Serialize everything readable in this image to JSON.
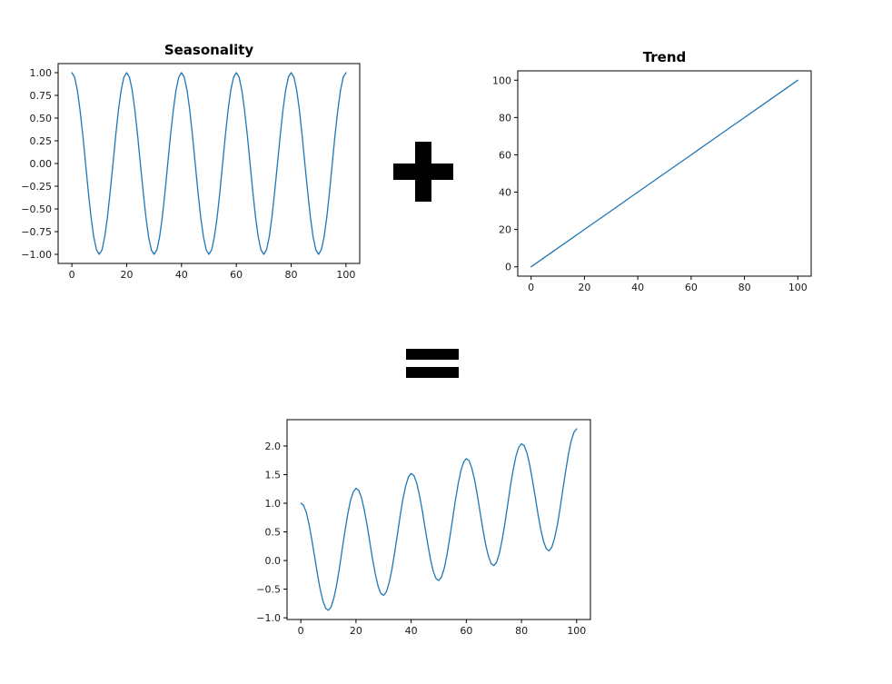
{
  "page": {
    "background": "#ffffff",
    "frame_color": "#000000",
    "tick_text_color": "#1a1a1a"
  },
  "operators": {
    "plus_label": "+",
    "equals_label": "="
  },
  "chart_data": [
    {
      "type": "line",
      "title": "Seasonality",
      "line_color": "#1f77b4",
      "xlim": [
        -5,
        105
      ],
      "ylim": [
        -1.1,
        1.1
      ],
      "xtick_values": [
        0,
        20,
        40,
        60,
        80,
        100
      ],
      "xtick_labels": [
        "0",
        "20",
        "40",
        "60",
        "80",
        "100"
      ],
      "ytick_values": [
        -1.0,
        -0.75,
        -0.5,
        -0.25,
        0.0,
        0.25,
        0.5,
        0.75,
        1.0
      ],
      "ytick_labels": [
        "−1.00",
        "−0.75",
        "−0.50",
        "−0.25",
        "0.00",
        "0.25",
        "0.50",
        "0.75",
        "1.00"
      ],
      "x_start": 0,
      "x_step": 1,
      "y_values": [
        1.0,
        0.951,
        0.809,
        0.588,
        0.309,
        0.0,
        -0.309,
        -0.588,
        -0.809,
        -0.951,
        -1.0,
        -0.951,
        -0.809,
        -0.588,
        -0.309,
        0.0,
        0.309,
        0.588,
        0.809,
        0.951,
        1.0,
        0.951,
        0.809,
        0.588,
        0.309,
        0.0,
        -0.309,
        -0.588,
        -0.809,
        -0.951,
        -1.0,
        -0.951,
        -0.809,
        -0.588,
        -0.309,
        0.0,
        0.309,
        0.588,
        0.809,
        0.951,
        1.0,
        0.951,
        0.809,
        0.588,
        0.309,
        0.0,
        -0.309,
        -0.588,
        -0.809,
        -0.951,
        -1.0,
        -0.951,
        -0.809,
        -0.588,
        -0.309,
        0.0,
        0.309,
        0.588,
        0.809,
        0.951,
        1.0,
        0.951,
        0.809,
        0.588,
        0.309,
        0.0,
        -0.309,
        -0.588,
        -0.809,
        -0.951,
        -1.0,
        -0.951,
        -0.809,
        -0.588,
        -0.309,
        0.0,
        0.309,
        0.588,
        0.809,
        0.951,
        1.0,
        0.951,
        0.809,
        0.588,
        0.309,
        0.0,
        -0.309,
        -0.588,
        -0.809,
        -0.951,
        -1.0,
        -0.951,
        -0.809,
        -0.588,
        -0.309,
        0.0,
        0.309,
        0.588,
        0.809,
        0.951,
        1.0
      ]
    },
    {
      "type": "line",
      "title": "Trend",
      "line_color": "#1f77b4",
      "xlim": [
        -5,
        105
      ],
      "ylim": [
        -5,
        105
      ],
      "xtick_values": [
        0,
        20,
        40,
        60,
        80,
        100
      ],
      "xtick_labels": [
        "0",
        "20",
        "40",
        "60",
        "80",
        "100"
      ],
      "ytick_values": [
        0,
        20,
        40,
        60,
        80,
        100
      ],
      "ytick_labels": [
        "0",
        "20",
        "40",
        "60",
        "80",
        "100"
      ],
      "x_start": 0,
      "x_step": 10,
      "y_values": [
        0,
        10,
        20,
        30,
        40,
        50,
        60,
        70,
        80,
        90,
        100
      ]
    },
    {
      "type": "line",
      "title": "",
      "line_color": "#1f77b4",
      "xlim": [
        -5,
        105
      ],
      "ylim": [
        -1.03,
        2.46
      ],
      "xtick_values": [
        0,
        20,
        40,
        60,
        80,
        100
      ],
      "xtick_labels": [
        "0",
        "20",
        "40",
        "60",
        "80",
        "100"
      ],
      "ytick_values": [
        -1.0,
        -0.5,
        0.0,
        0.5,
        1.0,
        1.5,
        2.0
      ],
      "ytick_labels": [
        "−1.0",
        "−0.5",
        "0.0",
        "0.5",
        "1.0",
        "1.5",
        "2.0"
      ],
      "x_start": 0,
      "x_step": 1,
      "y_values": [
        1.0,
        0.964,
        0.835,
        0.627,
        0.361,
        0.065,
        -0.231,
        -0.497,
        -0.705,
        -0.834,
        -0.87,
        -0.808,
        -0.653,
        -0.419,
        -0.127,
        0.195,
        0.517,
        0.809,
        1.043,
        1.198,
        1.26,
        1.224,
        1.095,
        0.887,
        0.621,
        0.325,
        0.029,
        -0.237,
        -0.445,
        -0.574,
        -0.61,
        -0.548,
        -0.393,
        -0.159,
        0.133,
        0.455,
        0.777,
        1.069,
        1.303,
        1.458,
        1.52,
        1.484,
        1.355,
        1.147,
        0.881,
        0.585,
        0.289,
        0.023,
        -0.185,
        -0.314,
        -0.35,
        -0.288,
        -0.133,
        0.101,
        0.393,
        0.715,
        1.037,
        1.329,
        1.563,
        1.718,
        1.78,
        1.744,
        1.615,
        1.407,
        1.141,
        0.845,
        0.549,
        0.283,
        0.075,
        -0.054,
        -0.09,
        -0.028,
        0.127,
        0.361,
        0.653,
        0.975,
        1.297,
        1.589,
        1.823,
        1.978,
        2.04,
        2.004,
        1.875,
        1.667,
        1.401,
        1.105,
        0.809,
        0.543,
        0.335,
        0.206,
        0.17,
        0.232,
        0.387,
        0.621,
        0.913,
        1.235,
        1.557,
        1.849,
        2.083,
        2.238,
        2.3
      ]
    }
  ]
}
